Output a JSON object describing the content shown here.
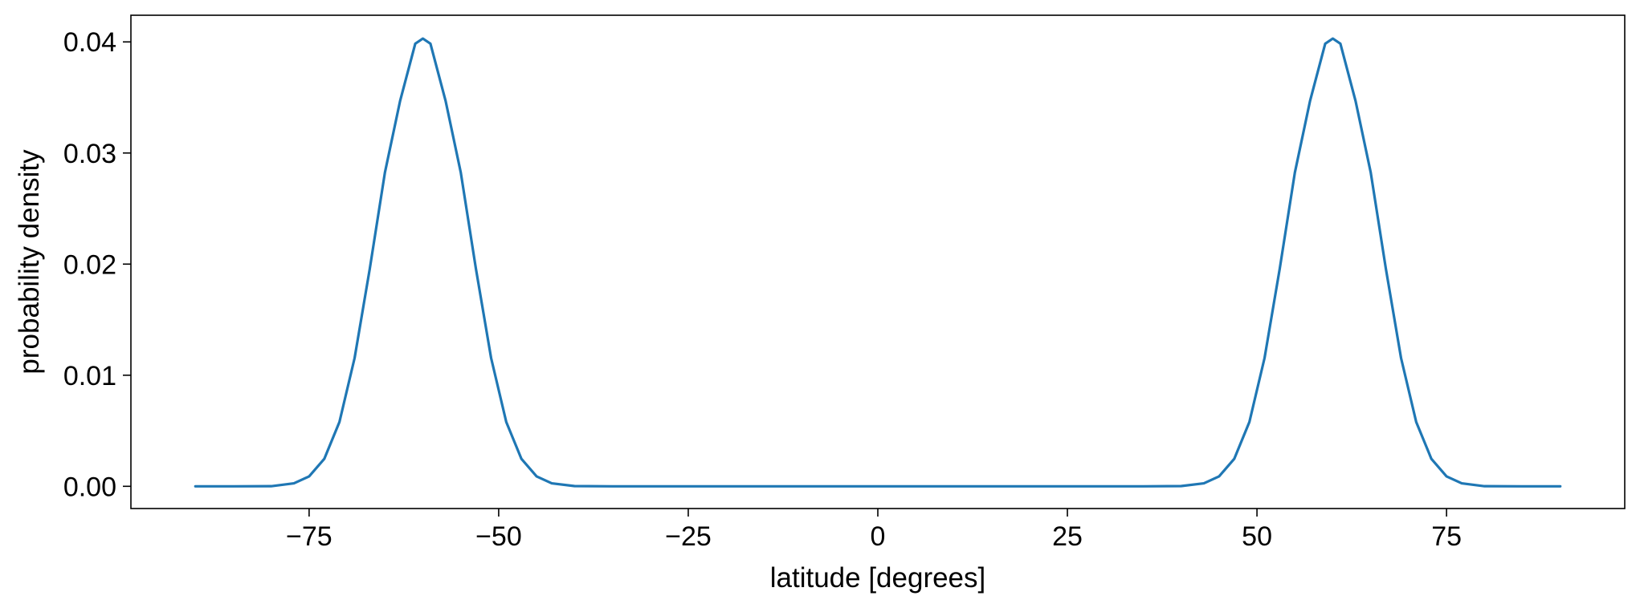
{
  "chart_data": {
    "type": "line",
    "title": "",
    "xlabel": "latitude [degrees]",
    "ylabel": "probability density",
    "xlim": [
      -98.5,
      98.5
    ],
    "ylim": [
      -0.002,
      0.0424
    ],
    "x_ticks": [
      -75,
      -50,
      -25,
      0,
      25,
      50,
      75
    ],
    "x_tick_labels": [
      "−75",
      "−50",
      "−25",
      "0",
      "25",
      "50",
      "75"
    ],
    "y_ticks": [
      0.0,
      0.01,
      0.02,
      0.03,
      0.04
    ],
    "y_tick_labels": [
      "0.00",
      "0.01",
      "0.02",
      "0.03",
      "0.04"
    ],
    "grid": false,
    "legend": false,
    "series": [
      {
        "color": "#1f77b4",
        "x": [
          -90,
          -85,
          -80,
          -77,
          -75,
          -73,
          -71,
          -69,
          -67,
          -65,
          -63,
          -61,
          -60,
          -59,
          -57,
          -55,
          -53,
          -51,
          -49,
          -47,
          -45,
          -43,
          -40,
          -35,
          -30,
          0,
          30,
          35,
          40,
          43,
          45,
          47,
          49,
          51,
          53,
          55,
          57,
          59,
          60,
          61,
          63,
          65,
          67,
          69,
          71,
          73,
          75,
          77,
          80,
          85,
          90
        ],
        "y": [
          0.0,
          0.0,
          1e-05,
          0.00027,
          0.00089,
          0.00247,
          0.00579,
          0.01155,
          0.01958,
          0.02825,
          0.03469,
          0.03984,
          0.0403,
          0.03984,
          0.03469,
          0.02825,
          0.01958,
          0.01155,
          0.00579,
          0.00247,
          0.00089,
          0.00027,
          2e-05,
          0.0,
          0.0,
          0.0,
          0.0,
          0.0,
          2e-05,
          0.00027,
          0.00089,
          0.00247,
          0.00579,
          0.01155,
          0.01958,
          0.02825,
          0.03469,
          0.03984,
          0.0403,
          0.03984,
          0.03469,
          0.02825,
          0.01958,
          0.01155,
          0.00579,
          0.00247,
          0.00089,
          0.00027,
          1e-05,
          0.0,
          0.0
        ]
      }
    ]
  }
}
